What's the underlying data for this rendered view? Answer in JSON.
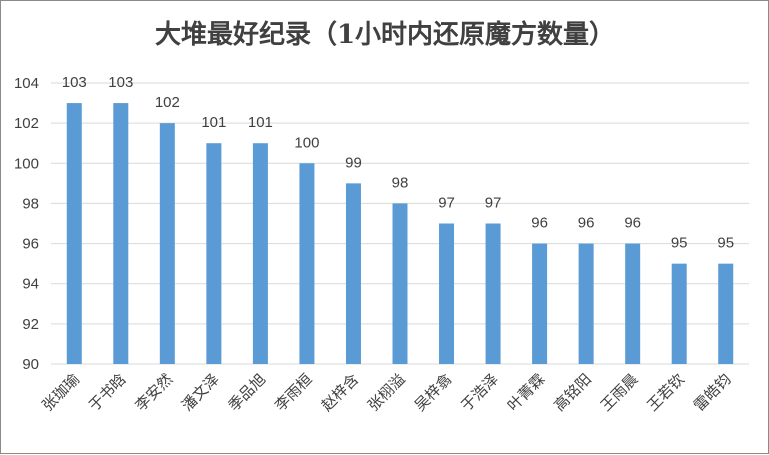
{
  "chart_data": {
    "type": "bar",
    "title": "大堆最好纪录（1小时内还原魔方数量）",
    "xlabel": "",
    "ylabel": "",
    "ylim": [
      90,
      104
    ],
    "yticks": [
      "90",
      "92",
      "94",
      "96",
      "98",
      "100",
      "102",
      "104"
    ],
    "grid": true,
    "legend": "none",
    "bar_color": "#5b9bd5",
    "categories": [
      "张珈瑜",
      "于书晗",
      "李安然",
      "潘文泽",
      "季品旭",
      "李雨桓",
      "赵梓含",
      "张栩溢",
      "吴梓翕",
      "于浩泽",
      "叶菁霖",
      "高铭阳",
      "王雨晨",
      "王若钦",
      "雷皓钧"
    ],
    "values": [
      103,
      103,
      102,
      101,
      101,
      100,
      99,
      98,
      97,
      97,
      96,
      96,
      96,
      95,
      95
    ],
    "data_labels": [
      "103",
      "103",
      "102",
      "101",
      "101",
      "100",
      "99",
      "98",
      "97",
      "97",
      "96",
      "96",
      "96",
      "95",
      "95"
    ]
  }
}
